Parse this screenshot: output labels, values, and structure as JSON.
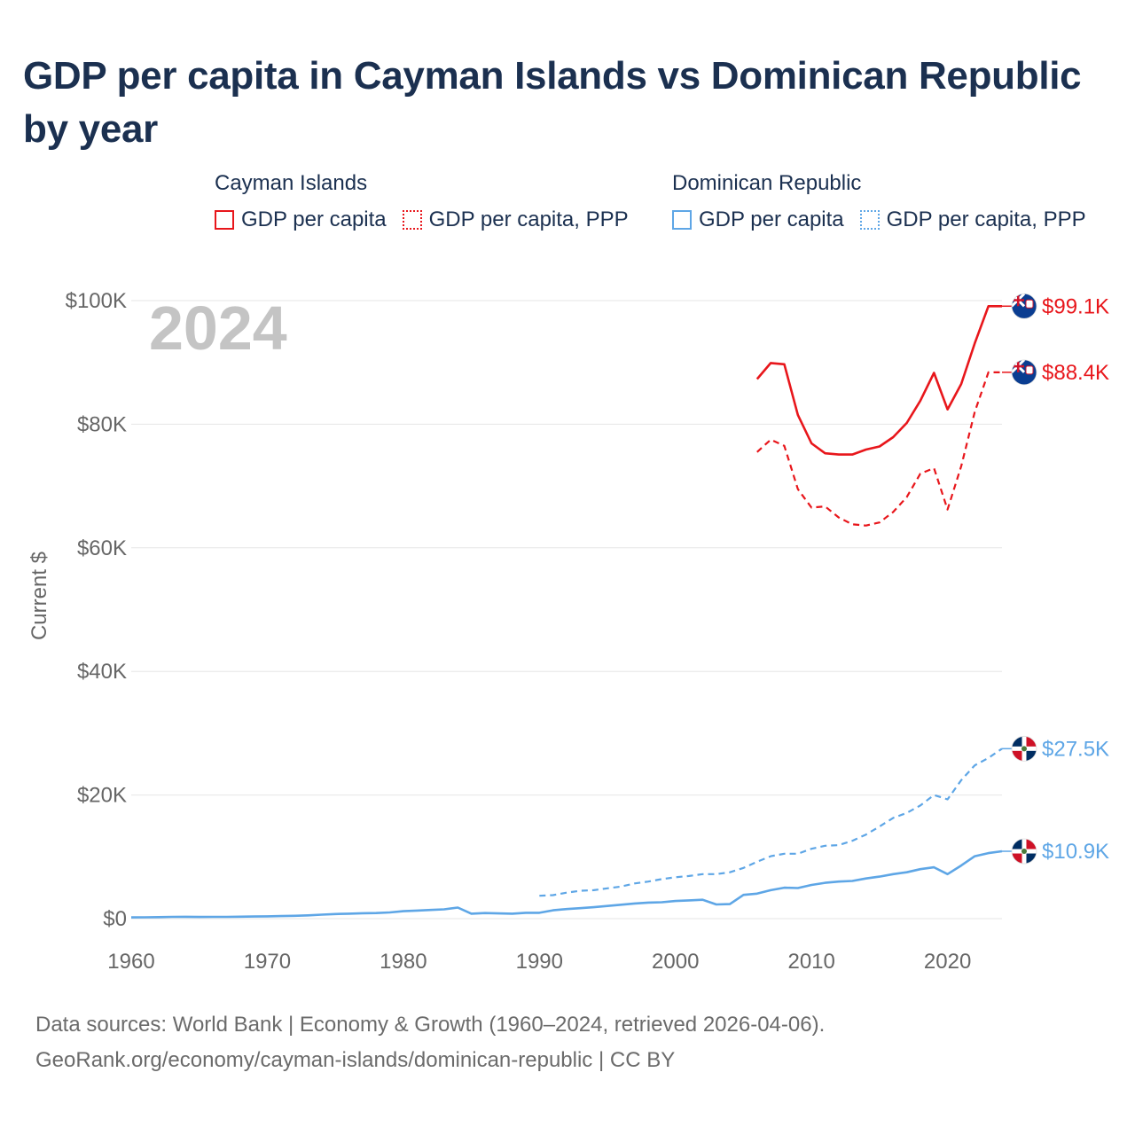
{
  "title": "GDP per capita in Cayman Islands vs Dominican Republic by year",
  "legend": {
    "groups": [
      {
        "name": "Cayman Islands",
        "color": "#e8161b",
        "items": [
          {
            "label": "GDP per capita",
            "style": "solid"
          },
          {
            "label": "GDP per capita, PPP",
            "style": "dashed"
          }
        ]
      },
      {
        "name": "Dominican Republic",
        "color": "#5ea6e6",
        "items": [
          {
            "label": "GDP per capita",
            "style": "solid"
          },
          {
            "label": "GDP per capita, PPP",
            "style": "dashed"
          }
        ]
      }
    ]
  },
  "year_watermark": "2024",
  "colors": {
    "cayman": "#e8161b",
    "dominican": "#5ea6e6",
    "grid": "#e6e6e6",
    "axis_text": "#666666",
    "watermark": "#c4c4c4"
  },
  "chart_data": {
    "type": "line",
    "title": "GDP per capita in Cayman Islands vs Dominican Republic by year",
    "xlabel": "",
    "ylabel": "Current $",
    "xlim": [
      1960,
      2024
    ],
    "ylim": [
      0,
      100000
    ],
    "x_ticks": [
      1960,
      1970,
      1980,
      1990,
      2000,
      2010,
      2020
    ],
    "y_ticks": [
      0,
      20000,
      40000,
      60000,
      80000,
      100000
    ],
    "y_tick_labels": [
      "$0",
      "$20K",
      "$40K",
      "$60K",
      "$80K",
      "$100K"
    ],
    "series": [
      {
        "name": "Cayman Islands — GDP per capita",
        "country": "Cayman Islands",
        "color": "#e8161b",
        "style": "solid",
        "end_label": "$99.1K",
        "icon": "cayman-islands-flag-icon",
        "points": [
          [
            2006,
            87300
          ],
          [
            2007,
            89900
          ],
          [
            2008,
            89700
          ],
          [
            2009,
            81500
          ],
          [
            2010,
            76900
          ],
          [
            2011,
            75300
          ],
          [
            2012,
            75100
          ],
          [
            2013,
            75100
          ],
          [
            2014,
            75900
          ],
          [
            2015,
            76400
          ],
          [
            2016,
            77900
          ],
          [
            2017,
            80200
          ],
          [
            2018,
            83800
          ],
          [
            2019,
            88300
          ],
          [
            2020,
            82400
          ],
          [
            2021,
            86500
          ],
          [
            2022,
            93100
          ],
          [
            2023,
            99100
          ],
          [
            2024,
            99100
          ]
        ]
      },
      {
        "name": "Cayman Islands — GDP per capita, PPP",
        "country": "Cayman Islands",
        "color": "#e8161b",
        "style": "dashed",
        "end_label": "$88.4K",
        "icon": "cayman-islands-flag-icon",
        "points": [
          [
            2006,
            75500
          ],
          [
            2007,
            77500
          ],
          [
            2008,
            76500
          ],
          [
            2009,
            69500
          ],
          [
            2010,
            66500
          ],
          [
            2011,
            66700
          ],
          [
            2012,
            64900
          ],
          [
            2013,
            63800
          ],
          [
            2014,
            63600
          ],
          [
            2015,
            64100
          ],
          [
            2016,
            65800
          ],
          [
            2017,
            68200
          ],
          [
            2018,
            72000
          ],
          [
            2019,
            72900
          ],
          [
            2020,
            66200
          ],
          [
            2021,
            73200
          ],
          [
            2022,
            82000
          ],
          [
            2023,
            88400
          ],
          [
            2024,
            88400
          ]
        ]
      },
      {
        "name": "Dominican Republic — GDP per capita, PPP",
        "country": "Dominican Republic",
        "color": "#5ea6e6",
        "style": "dashed",
        "end_label": "$27.5K",
        "icon": "dominican-republic-flag-icon",
        "points": [
          [
            1990,
            3700
          ],
          [
            1991,
            3800
          ],
          [
            1992,
            4200
          ],
          [
            1993,
            4500
          ],
          [
            1994,
            4600
          ],
          [
            1995,
            4900
          ],
          [
            1996,
            5200
          ],
          [
            1997,
            5700
          ],
          [
            1998,
            6000
          ],
          [
            1999,
            6400
          ],
          [
            2000,
            6700
          ],
          [
            2001,
            6900
          ],
          [
            2002,
            7200
          ],
          [
            2003,
            7200
          ],
          [
            2004,
            7500
          ],
          [
            2005,
            8200
          ],
          [
            2006,
            9200
          ],
          [
            2007,
            10100
          ],
          [
            2008,
            10500
          ],
          [
            2009,
            10500
          ],
          [
            2010,
            11300
          ],
          [
            2011,
            11800
          ],
          [
            2012,
            11900
          ],
          [
            2013,
            12600
          ],
          [
            2014,
            13600
          ],
          [
            2015,
            14900
          ],
          [
            2016,
            16300
          ],
          [
            2017,
            17100
          ],
          [
            2018,
            18300
          ],
          [
            2019,
            20000
          ],
          [
            2020,
            19300
          ],
          [
            2021,
            22400
          ],
          [
            2022,
            24800
          ],
          [
            2023,
            26000
          ],
          [
            2024,
            27500
          ]
        ]
      },
      {
        "name": "Dominican Republic — GDP per capita",
        "country": "Dominican Republic",
        "color": "#5ea6e6",
        "style": "solid",
        "end_label": "$10.9K",
        "icon": "dominican-republic-flag-icon",
        "points": [
          [
            1960,
            200
          ],
          [
            1961,
            210
          ],
          [
            1962,
            250
          ],
          [
            1963,
            280
          ],
          [
            1964,
            300
          ],
          [
            1965,
            270
          ],
          [
            1966,
            280
          ],
          [
            1967,
            290
          ],
          [
            1968,
            320
          ],
          [
            1969,
            350
          ],
          [
            1970,
            380
          ],
          [
            1971,
            410
          ],
          [
            1972,
            460
          ],
          [
            1973,
            530
          ],
          [
            1974,
            640
          ],
          [
            1975,
            740
          ],
          [
            1976,
            800
          ],
          [
            1977,
            880
          ],
          [
            1978,
            900
          ],
          [
            1979,
            1000
          ],
          [
            1980,
            1200
          ],
          [
            1981,
            1300
          ],
          [
            1982,
            1400
          ],
          [
            1983,
            1500
          ],
          [
            1984,
            1800
          ],
          [
            1985,
            800
          ],
          [
            1986,
            900
          ],
          [
            1987,
            850
          ],
          [
            1988,
            800
          ],
          [
            1989,
            950
          ],
          [
            1990,
            950
          ],
          [
            1991,
            1350
          ],
          [
            1992,
            1550
          ],
          [
            1993,
            1700
          ],
          [
            1994,
            1850
          ],
          [
            1995,
            2050
          ],
          [
            1996,
            2250
          ],
          [
            1997,
            2450
          ],
          [
            1998,
            2600
          ],
          [
            1999,
            2650
          ],
          [
            2000,
            2850
          ],
          [
            2001,
            2950
          ],
          [
            2002,
            3050
          ],
          [
            2003,
            2300
          ],
          [
            2004,
            2350
          ],
          [
            2005,
            3850
          ],
          [
            2006,
            4050
          ],
          [
            2007,
            4600
          ],
          [
            2008,
            5000
          ],
          [
            2009,
            4950
          ],
          [
            2010,
            5450
          ],
          [
            2011,
            5800
          ],
          [
            2012,
            6000
          ],
          [
            2013,
            6100
          ],
          [
            2014,
            6500
          ],
          [
            2015,
            6800
          ],
          [
            2016,
            7200
          ],
          [
            2017,
            7500
          ],
          [
            2018,
            8000
          ],
          [
            2019,
            8300
          ],
          [
            2020,
            7200
          ],
          [
            2021,
            8600
          ],
          [
            2022,
            10100
          ],
          [
            2023,
            10600
          ],
          [
            2024,
            10900
          ]
        ]
      }
    ]
  },
  "footer": {
    "line1": "Data sources: World Bank | Economy & Growth (1960–2024, retrieved 2026-04-06).",
    "line2": "GeoRank.org/economy/cayman-islands/dominican-republic | CC BY"
  }
}
